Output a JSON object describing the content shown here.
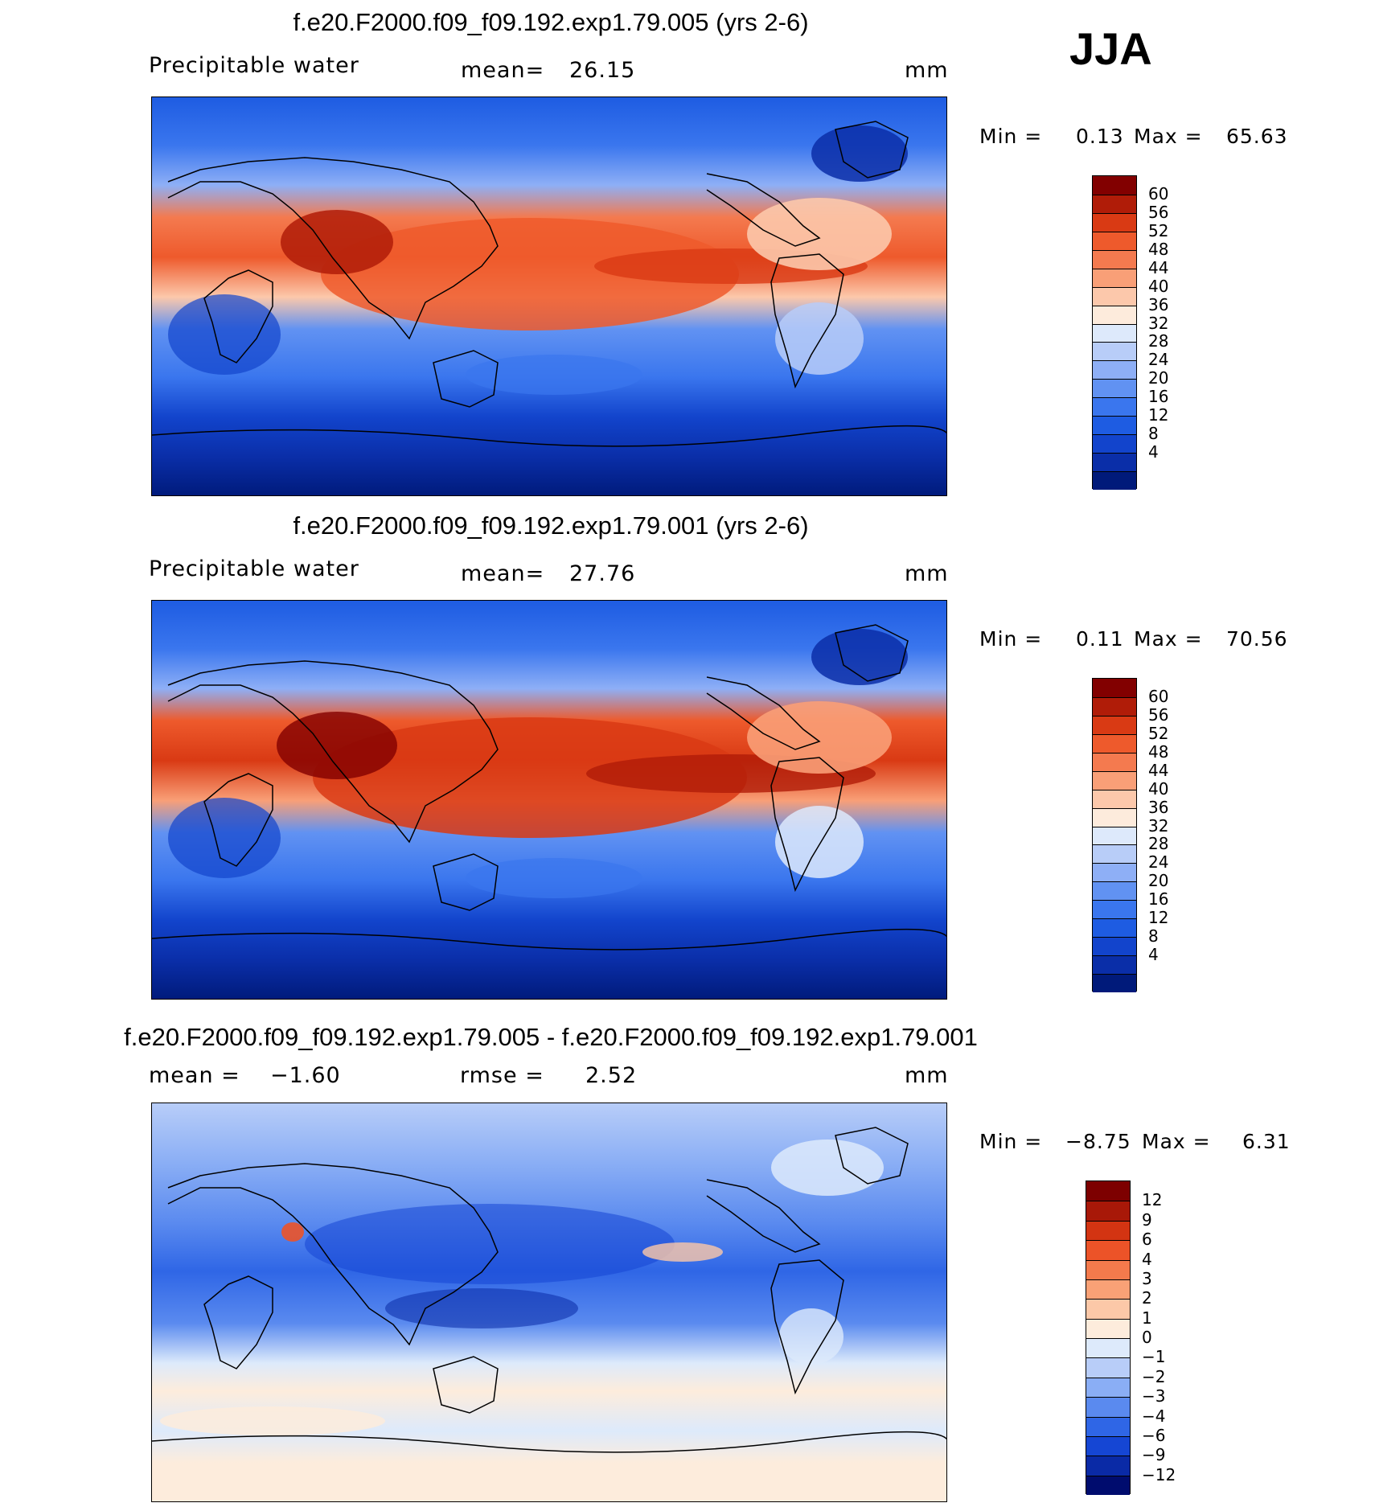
{
  "season": "JJA",
  "colorbar_palette": {
    "pw": [
      "#001a7a",
      "#0a2ea8",
      "#1244cc",
      "#1e5ce2",
      "#3a76ee",
      "#6192f2",
      "#8eaff6",
      "#b8cdf8",
      "#dde9fb",
      "#fdebdc",
      "#fcc8ab",
      "#f99f77",
      "#f47a4f",
      "#ee5a2c",
      "#d93a14",
      "#b01c08",
      "#820000"
    ],
    "diff": [
      "#000c6e",
      "#0a2aa6",
      "#1546d4",
      "#2f66e6",
      "#5a8aef",
      "#8aaef5",
      "#b8cdf8",
      "#ddeafb",
      "#fdecdc",
      "#fcc8a8",
      "#f9a176",
      "#f47a4c",
      "#ec5328",
      "#d33412",
      "#a81808",
      "#7d0000"
    ]
  },
  "panels": [
    {
      "title": "f.e20.F2000.f09_f09.192.exp1.79.005 (yrs 2-6)",
      "variable": "Precipitable water",
      "mean_label": "mean=",
      "mean": "26.15",
      "units": "mm",
      "min_label": "Min =",
      "min": "0.13",
      "max_label": "Max =",
      "max": "65.63",
      "colorbar_labels": [
        "60",
        "56",
        "52",
        "48",
        "44",
        "40",
        "36",
        "32",
        "28",
        "24",
        "20",
        "16",
        "12",
        "8",
        "4"
      ]
    },
    {
      "title": "f.e20.F2000.f09_f09.192.exp1.79.001 (yrs 2-6)",
      "variable": "Precipitable water",
      "mean_label": "mean=",
      "mean": "27.76",
      "units": "mm",
      "min_label": "Min =",
      "min": "0.11",
      "max_label": "Max =",
      "max": "70.56",
      "colorbar_labels": [
        "60",
        "56",
        "52",
        "48",
        "44",
        "40",
        "36",
        "32",
        "28",
        "24",
        "20",
        "16",
        "12",
        "8",
        "4"
      ]
    },
    {
      "title": "f.e20.F2000.f09_f09.192.exp1.79.005 - f.e20.F2000.f09_f09.192.exp1.79.001",
      "mean_label": "mean =",
      "mean": "−1.60",
      "rmse_label": "rmse =",
      "rmse": "2.52",
      "units": "mm",
      "min_label": "Min =",
      "min": "−8.75",
      "max_label": "Max =",
      "max": "6.31",
      "colorbar_labels": [
        "12",
        "9",
        "6",
        "4",
        "3",
        "2",
        "1",
        "0",
        "−1",
        "−2",
        "−3",
        "−4",
        "−6",
        "−9",
        "−12"
      ]
    }
  ]
}
